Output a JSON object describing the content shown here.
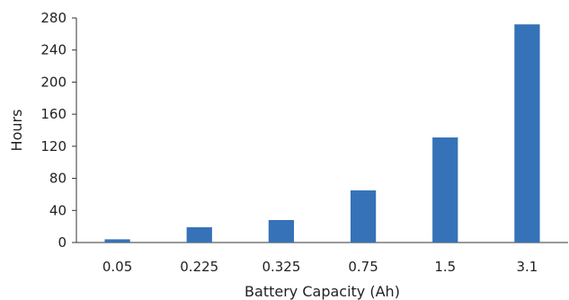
{
  "chart_data": {
    "type": "bar",
    "title": "",
    "xlabel": "Battery Capacity (Ah)",
    "ylabel": "Hours",
    "categories": [
      "0.05",
      "0.225",
      "0.325",
      "0.75",
      "1.5",
      "3.1"
    ],
    "series": [
      {
        "values": [
          4,
          19,
          28,
          65,
          131,
          272
        ]
      }
    ],
    "ylim": [
      0,
      280
    ],
    "yticks": [
      "0",
      "40",
      "80",
      "120",
      "160",
      "200",
      "240",
      "280"
    ],
    "grid": false,
    "legend": "none",
    "bar_color": "#3572b7"
  }
}
